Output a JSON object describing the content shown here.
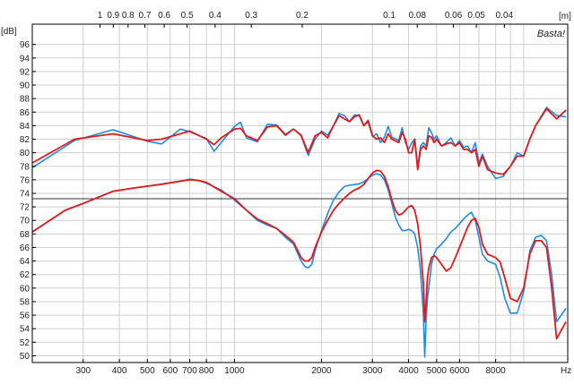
{
  "chart_data": {
    "type": "line",
    "title": "",
    "xlabel": "",
    "ylabel": "",
    "x_scale": "log",
    "xlim": [
      200,
      14200
    ],
    "ylim": [
      49,
      99
    ],
    "grid": true,
    "legend": "none",
    "y_unit": "[dB]",
    "x_unit": "Hz",
    "top_unit": "[m]",
    "watermark": "Basta!",
    "y_ticks": [
      "50",
      "52",
      "54",
      "56",
      "58",
      "60",
      "62",
      "64",
      "66",
      "68",
      "70",
      "72",
      "74",
      "76",
      "78",
      "80",
      "82",
      "84",
      "86",
      "88",
      "90",
      "92",
      "94",
      "96"
    ],
    "x_ticks": [
      {
        "v": 300,
        "t": "300"
      },
      {
        "v": 400,
        "t": "400"
      },
      {
        "v": 500,
        "t": "500"
      },
      {
        "v": 600,
        "t": "600"
      },
      {
        "v": 700,
        "t": "700"
      },
      {
        "v": 800,
        "t": "800"
      },
      {
        "v": 1000,
        "t": "1000"
      },
      {
        "v": 2000,
        "t": "2000"
      },
      {
        "v": 3000,
        "t": "3000"
      },
      {
        "v": 4000,
        "t": "4000"
      },
      {
        "v": 5000,
        "t": "5000"
      },
      {
        "v": 6000,
        "t": "6000"
      },
      {
        "v": 8000,
        "t": "8000"
      }
    ],
    "x_minor": [
      200,
      900,
      7000,
      9000,
      10000
    ],
    "top_ticks": [
      {
        "v": 1,
        "t": "1"
      },
      {
        "v": 0.9,
        "t": "0.9"
      },
      {
        "v": 0.8,
        "t": "0.8"
      },
      {
        "v": 0.7,
        "t": "0.7"
      },
      {
        "v": 0.6,
        "t": "0.6"
      },
      {
        "v": 0.5,
        "t": "0.5"
      },
      {
        "v": 0.4,
        "t": "0.4"
      },
      {
        "v": 0.3,
        "t": "0.3"
      },
      {
        "v": 0.2,
        "t": "0.2"
      },
      {
        "v": 0.1,
        "t": "0.1"
      },
      {
        "v": 0.08,
        "t": "0.08"
      },
      {
        "v": 0.06,
        "t": "0.06"
      },
      {
        "v": 0.05,
        "t": "0.05"
      },
      {
        "v": 0.04,
        "t": "0.04"
      }
    ],
    "reference_line": 73.2,
    "colors": {
      "blue": "#1e8ce6",
      "red": "#e01a1a",
      "reference": "#333333",
      "grid": "#cfcfcf"
    },
    "series": [
      {
        "color": "blue",
        "x": [
          200,
          280,
          380,
          500,
          560,
          650,
          700,
          800,
          850,
          900,
          1000,
          1050,
          1100,
          1200,
          1300,
          1400,
          1500,
          1600,
          1700,
          1800,
          1900,
          2000,
          2100,
          2200,
          2300,
          2400,
          2500,
          2600,
          2700,
          2800,
          2900,
          3000,
          3100,
          3200,
          3300,
          3400,
          3500,
          3700,
          3800,
          3900,
          4000,
          4100,
          4200,
          4300,
          4400,
          4500,
          4600,
          4700,
          4800,
          4900,
          5000,
          5200,
          5400,
          5600,
          5800,
          6000,
          6200,
          6400,
          6600,
          6800,
          7000,
          7200,
          7500,
          8000,
          8500,
          9000,
          9500,
          10000,
          10500,
          11000,
          12000,
          13000,
          14000
        ],
        "y": [
          77.8,
          81.8,
          83.4,
          81.7,
          81.3,
          83.5,
          83.1,
          82.1,
          80.2,
          81.5,
          83.9,
          84.5,
          82.2,
          81.6,
          84.2,
          84.1,
          82.7,
          83.5,
          82.5,
          79.6,
          82.0,
          83.2,
          82.6,
          84.0,
          85.8,
          85.5,
          84.6,
          85.6,
          85.5,
          84.0,
          84.5,
          82.4,
          82.8,
          81.5,
          82.3,
          83.9,
          82.3,
          81.8,
          83.7,
          81.5,
          80.5,
          81.5,
          82.0,
          78.0,
          81.0,
          81.5,
          81.0,
          83.7,
          83.0,
          82.0,
          82.5,
          81.0,
          81.5,
          82.2,
          81.0,
          81.8,
          80.8,
          81.0,
          80.0,
          81.5,
          78.5,
          79.8,
          78.0,
          76.2,
          76.5,
          78.0,
          80.0,
          79.5,
          82.0,
          84.0,
          86.7,
          85.5,
          85.3
        ]
      },
      {
        "color": "red",
        "x": [
          200,
          280,
          380,
          500,
          560,
          650,
          700,
          800,
          850,
          900,
          1000,
          1050,
          1100,
          1200,
          1300,
          1400,
          1500,
          1600,
          1700,
          1800,
          1900,
          2000,
          2100,
          2200,
          2300,
          2400,
          2500,
          2600,
          2700,
          2800,
          2900,
          3000,
          3100,
          3200,
          3300,
          3400,
          3500,
          3700,
          3800,
          3900,
          4000,
          4100,
          4200,
          4300,
          4400,
          4500,
          4600,
          4700,
          4800,
          4900,
          5000,
          5200,
          5400,
          5600,
          5800,
          6000,
          6200,
          6400,
          6600,
          6800,
          7000,
          7200,
          7500,
          8000,
          8500,
          9000,
          9500,
          10000,
          10500,
          11000,
          12000,
          13000,
          14000
        ],
        "y": [
          78.5,
          82.0,
          82.8,
          81.8,
          82.0,
          82.8,
          83.2,
          82.0,
          81.2,
          82.2,
          83.5,
          83.6,
          82.5,
          81.8,
          83.8,
          84.0,
          82.6,
          83.5,
          82.6,
          80.0,
          82.5,
          83.0,
          82.2,
          84.0,
          85.5,
          85.0,
          84.6,
          85.3,
          85.6,
          84.0,
          84.8,
          82.5,
          82.0,
          82.2,
          81.5,
          82.8,
          82.0,
          81.5,
          83.0,
          82.0,
          80.0,
          80.0,
          82.0,
          77.5,
          80.5,
          81.0,
          80.5,
          82.5,
          82.3,
          81.5,
          82.0,
          81.0,
          81.3,
          81.5,
          81.0,
          81.5,
          80.5,
          80.5,
          80.0,
          80.5,
          78.0,
          79.5,
          77.5,
          77.0,
          76.8,
          78.0,
          79.5,
          79.5,
          82.0,
          84.0,
          86.5,
          85.0,
          86.3
        ]
      },
      {
        "color": "blue",
        "x": [
          200,
          260,
          300,
          380,
          450,
          550,
          650,
          700,
          750,
          800,
          900,
          1000,
          1100,
          1200,
          1300,
          1400,
          1500,
          1600,
          1700,
          1750,
          1800,
          1850,
          1900,
          2000,
          2100,
          2200,
          2300,
          2400,
          2500,
          2600,
          2700,
          2800,
          2900,
          3000,
          3100,
          3200,
          3300,
          3400,
          3500,
          3600,
          3700,
          3800,
          3900,
          4000,
          4100,
          4200,
          4300,
          4400,
          4500,
          4550,
          4600,
          4650,
          4700,
          4800,
          4900,
          5000,
          5200,
          5400,
          5600,
          5800,
          6000,
          6200,
          6400,
          6600,
          6800,
          7000,
          7200,
          7500,
          8000,
          8300,
          8600,
          9000,
          9500,
          10000,
          10500,
          11000,
          11500,
          12000,
          12500,
          13000,
          14000
        ],
        "y": [
          68.3,
          71.5,
          72.5,
          74.3,
          74.8,
          75.3,
          75.8,
          76.1,
          75.9,
          75.5,
          74.5,
          73.0,
          71.5,
          70.0,
          69.3,
          68.8,
          67.5,
          66.5,
          64.0,
          63.2,
          63.0,
          63.5,
          65.5,
          68.5,
          71.0,
          73.0,
          74.2,
          75.0,
          75.2,
          75.3,
          75.4,
          75.7,
          76.2,
          76.7,
          76.9,
          76.7,
          76.0,
          74.5,
          72.5,
          70.5,
          69.3,
          68.5,
          68.5,
          68.7,
          68.5,
          68.0,
          66.0,
          62.5,
          56.0,
          49.8,
          55.5,
          58.5,
          60.0,
          63.5,
          65.0,
          65.8,
          66.5,
          67.3,
          68.3,
          68.8,
          69.5,
          70.2,
          70.8,
          71.2,
          70.0,
          67.5,
          65.0,
          64.0,
          63.5,
          61.5,
          58.5,
          56.3,
          56.3,
          59.5,
          65.5,
          67.5,
          67.8,
          67.0,
          62.0,
          55.0,
          57.0
        ]
      },
      {
        "color": "red",
        "x": [
          200,
          260,
          300,
          380,
          450,
          550,
          650,
          700,
          750,
          800,
          900,
          1000,
          1100,
          1200,
          1300,
          1400,
          1500,
          1600,
          1700,
          1750,
          1800,
          1850,
          1900,
          2000,
          2100,
          2200,
          2300,
          2400,
          2500,
          2600,
          2700,
          2800,
          2900,
          3000,
          3100,
          3200,
          3300,
          3400,
          3500,
          3600,
          3700,
          3800,
          3900,
          4000,
          4100,
          4200,
          4300,
          4400,
          4500,
          4550,
          4600,
          4650,
          4700,
          4800,
          4900,
          5000,
          5200,
          5400,
          5600,
          5800,
          6000,
          6200,
          6400,
          6600,
          6800,
          7000,
          7200,
          7500,
          8000,
          8300,
          8600,
          9000,
          9500,
          10000,
          10500,
          11000,
          11500,
          12000,
          12500,
          13000,
          14000
        ],
        "y": [
          68.3,
          71.5,
          72.5,
          74.3,
          74.8,
          75.3,
          75.8,
          76.0,
          75.9,
          75.6,
          74.3,
          73.2,
          71.5,
          70.2,
          69.5,
          68.8,
          67.8,
          66.8,
          64.5,
          64.0,
          64.0,
          64.5,
          66.0,
          68.3,
          70.0,
          71.5,
          72.5,
          73.3,
          74.0,
          74.5,
          74.8,
          75.3,
          76.2,
          77.0,
          77.4,
          77.3,
          76.5,
          75.0,
          73.0,
          71.5,
          70.8,
          71.0,
          71.5,
          72.0,
          72.2,
          71.5,
          69.5,
          66.0,
          60.5,
          55.0,
          58.0,
          61.5,
          63.0,
          64.5,
          64.8,
          64.5,
          63.5,
          62.5,
          63.0,
          64.5,
          66.0,
          67.5,
          69.0,
          70.0,
          70.3,
          69.0,
          66.5,
          65.0,
          64.5,
          63.8,
          61.5,
          58.5,
          58.0,
          60.0,
          65.0,
          67.0,
          67.0,
          66.0,
          60.0,
          52.5,
          55.0
        ]
      }
    ]
  }
}
